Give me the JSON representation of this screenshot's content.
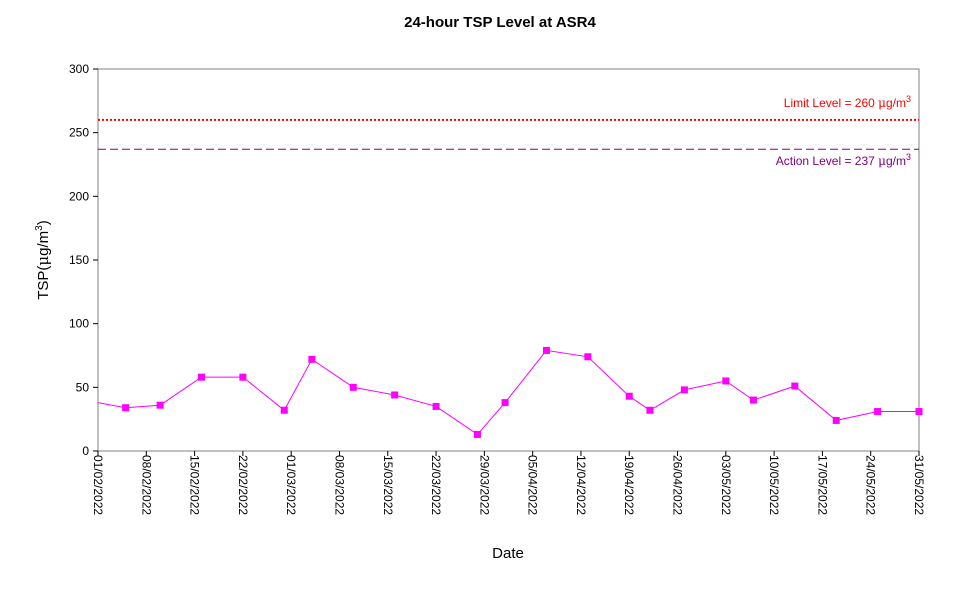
{
  "chart_data": {
    "type": "line",
    "title": "24-hour TSP Level at ASR4",
    "xlabel": "Date",
    "ylabel": {
      "base": "TSP(",
      "mu": "μ",
      "unit": "g/m",
      "sup": "3",
      "close": ")"
    },
    "ylim": [
      0,
      300
    ],
    "yticks": [
      0,
      50,
      100,
      150,
      200,
      250,
      300
    ],
    "xlim": [
      "2022-02-01",
      "2022-05-31"
    ],
    "xticks": [
      "01/02/2022",
      "08/02/2022",
      "15/02/2022",
      "22/02/2022",
      "01/03/2022",
      "08/03/2022",
      "15/03/2022",
      "22/03/2022",
      "29/03/2022",
      "05/04/2022",
      "12/04/2022",
      "19/04/2022",
      "26/04/2022",
      "03/05/2022",
      "10/05/2022",
      "17/05/2022",
      "24/05/2022",
      "31/05/2022"
    ],
    "grid": false,
    "series": [
      {
        "color": "#ff00ff",
        "marker": "square",
        "points": [
          {
            "x": "2022-02-01",
            "y": 38
          },
          {
            "x": "2022-02-05",
            "y": 34
          },
          {
            "x": "2022-02-10",
            "y": 36
          },
          {
            "x": "2022-02-16",
            "y": 58
          },
          {
            "x": "2022-02-22",
            "y": 58
          },
          {
            "x": "2022-02-28",
            "y": 32
          },
          {
            "x": "2022-03-04",
            "y": 72
          },
          {
            "x": "2022-03-10",
            "y": 50
          },
          {
            "x": "2022-03-16",
            "y": 44
          },
          {
            "x": "2022-03-22",
            "y": 35
          },
          {
            "x": "2022-03-28",
            "y": 13
          },
          {
            "x": "2022-04-01",
            "y": 38
          },
          {
            "x": "2022-04-07",
            "y": 79
          },
          {
            "x": "2022-04-13",
            "y": 74
          },
          {
            "x": "2022-04-19",
            "y": 43
          },
          {
            "x": "2022-04-22",
            "y": 32
          },
          {
            "x": "2022-04-27",
            "y": 48
          },
          {
            "x": "2022-05-03",
            "y": 55
          },
          {
            "x": "2022-05-07",
            "y": 40
          },
          {
            "x": "2022-05-13",
            "y": 51
          },
          {
            "x": "2022-05-19",
            "y": 24
          },
          {
            "x": "2022-05-25",
            "y": 31
          },
          {
            "x": "2022-05-31",
            "y": 31
          }
        ]
      }
    ],
    "reference_lines": [
      {
        "key": "limit",
        "value": 260,
        "color": "#ff0000",
        "style": "dotted",
        "label": {
          "prefix": "Limit Level  = 260 ",
          "mu": "μ",
          "unit": "g/m",
          "sup": "3"
        }
      },
      {
        "key": "action",
        "value": 237,
        "color": "#800080",
        "style": "dashed",
        "label": {
          "prefix": "Action Level  = 237 ",
          "mu": "μ",
          "unit": "g/m",
          "sup": "3"
        }
      }
    ]
  }
}
